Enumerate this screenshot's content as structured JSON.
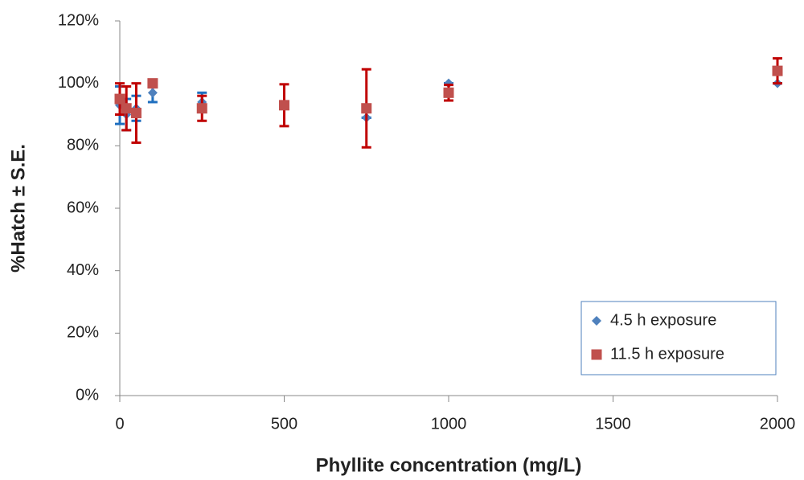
{
  "chart_data": {
    "type": "scatter",
    "x_label": "Phyllite concentration (mg/L)",
    "y_label": "%Hatch ± S.E.",
    "xlim": [
      0,
      2000
    ],
    "xticks": [
      0,
      500,
      1000,
      1500,
      2000
    ],
    "ylim": [
      0,
      120
    ],
    "yticks": [
      {
        "value": 0,
        "label": "0%"
      },
      {
        "value": 20,
        "label": "20%"
      },
      {
        "value": 40,
        "label": "40%"
      },
      {
        "value": 60,
        "label": "60%"
      },
      {
        "value": 80,
        "label": "80%"
      },
      {
        "value": 100,
        "label": "100%"
      },
      {
        "value": 120,
        "label": "120%"
      }
    ],
    "legend": "lower right",
    "series": [
      {
        "name": "4.5 h exposure",
        "color": "#4f81bd",
        "error_color": "#1f6fbf",
        "marker": "diamond",
        "x": [
          0,
          20,
          50,
          100,
          250,
          500,
          750,
          1000,
          2000
        ],
        "values": [
          93,
          90,
          92,
          97,
          94,
          93,
          89,
          100,
          100
        ],
        "errors": [
          6,
          5,
          4,
          3,
          3,
          0,
          0,
          0,
          0
        ]
      },
      {
        "name": "11.5 h exposure",
        "color": "#c0504d",
        "error_color": "#c00000",
        "marker": "square",
        "x": [
          0,
          20,
          50,
          100,
          250,
          500,
          750,
          1000,
          2000
        ],
        "values": [
          95,
          92,
          90.5,
          100,
          92,
          93,
          92,
          97,
          104
        ],
        "errors": [
          5,
          7,
          9.5,
          0,
          4,
          6.7,
          12.5,
          2.5,
          4
        ]
      }
    ]
  }
}
